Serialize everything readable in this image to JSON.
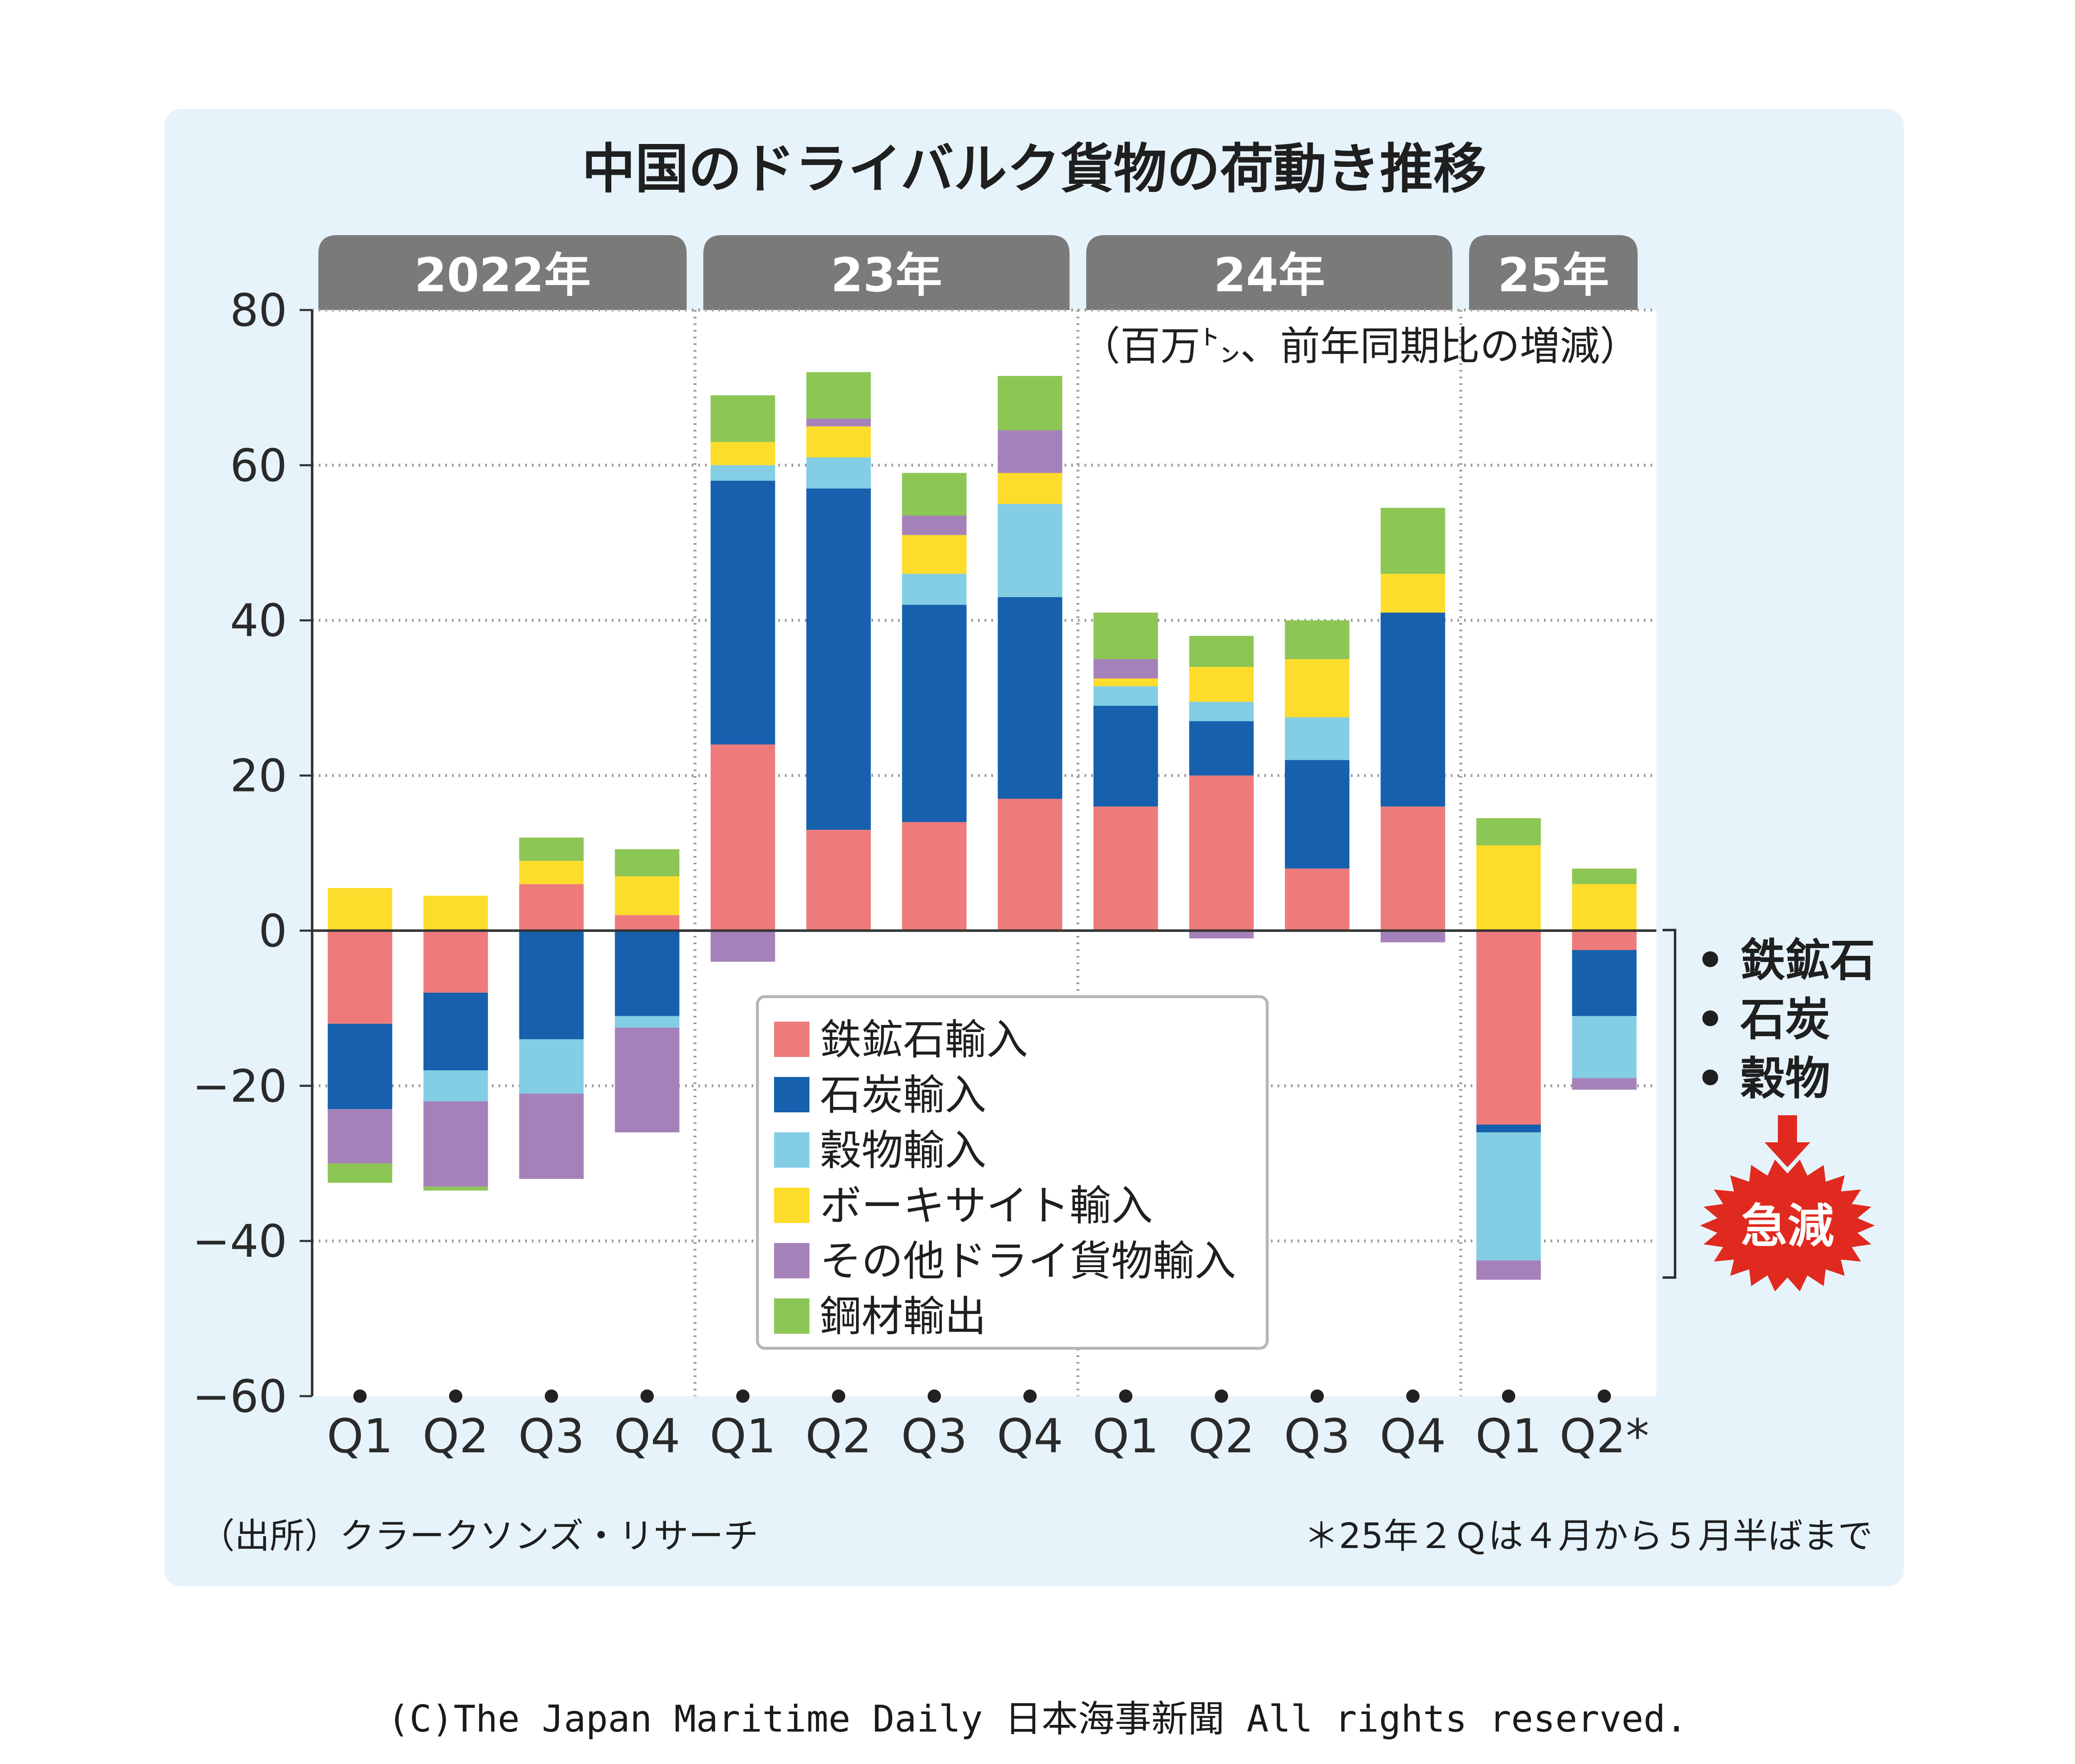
{
  "chart_data": {
    "type": "bar",
    "stacked": true,
    "title": "中国のドライバルク貨物の荷動き推移",
    "unit_note": "（百万㌧、前年同期比の増減）",
    "years": [
      {
        "label": "2022年",
        "quarters": 4
      },
      {
        "label": "23年",
        "quarters": 4
      },
      {
        "label": "24年",
        "quarters": 4
      },
      {
        "label": "25年",
        "quarters": 2
      }
    ],
    "categories": [
      "Q1",
      "Q2",
      "Q3",
      "Q4",
      "Q1",
      "Q2",
      "Q3",
      "Q4",
      "Q1",
      "Q2",
      "Q3",
      "Q4",
      "Q1",
      "Q2*"
    ],
    "ylim": [
      -60,
      80
    ],
    "yticks": [
      "80",
      "60",
      "40",
      "20",
      "0",
      "-20",
      "-40",
      "-60"
    ],
    "grid": true,
    "legend_position": "center",
    "series": [
      {
        "name": "鉄鉱石輸入",
        "color": "#ee7b7b",
        "values": [
          -12,
          -8,
          6,
          2,
          24,
          13,
          14,
          17,
          16,
          20,
          8,
          16,
          -25,
          -2.5
        ]
      },
      {
        "name": "石炭輸入",
        "color": "#1660ad",
        "values": [
          -11,
          -10,
          -14,
          -11,
          34,
          44,
          28,
          26,
          13,
          7,
          14,
          25,
          -1,
          -8.5
        ]
      },
      {
        "name": "穀物輸入",
        "color": "#83cee5",
        "values": [
          0,
          -4,
          -7,
          -1.5,
          2,
          4,
          4,
          12,
          2.5,
          2.5,
          5.5,
          0,
          -16.5,
          -8
        ]
      },
      {
        "name": "ボーキサイト輸入",
        "color": "#fddc2c",
        "values": [
          5.5,
          4.5,
          3,
          5,
          3,
          4,
          5,
          4,
          1,
          4.5,
          7.5,
          5,
          11,
          6
        ]
      },
      {
        "name": "その他ドライ貨物輸入",
        "color": "#a581ba",
        "values": [
          -7,
          -11,
          -11,
          -13.5,
          -4,
          1,
          2.5,
          5.5,
          2.5,
          -1,
          0,
          -1.5,
          -2.5,
          -1.5
        ]
      },
      {
        "name": "鋼材輸出",
        "color": "#8cc655",
        "values": [
          -2.5,
          -0.5,
          3,
          3.5,
          6,
          6,
          5.5,
          7,
          6,
          4,
          5,
          8.5,
          3.5,
          2
        ]
      }
    ],
    "annotation": {
      "items": [
        "• 鉄鉱石",
        "• 石炭",
        "• 穀物"
      ],
      "burst": "急減"
    },
    "source": "（出所）クラークソンズ・リサーチ",
    "footnote": "＊25年２Ｑは４月から５月半ばまで"
  },
  "copyright": "(C)The Japan Maritime Daily 日本海事新聞 All rights reserved."
}
